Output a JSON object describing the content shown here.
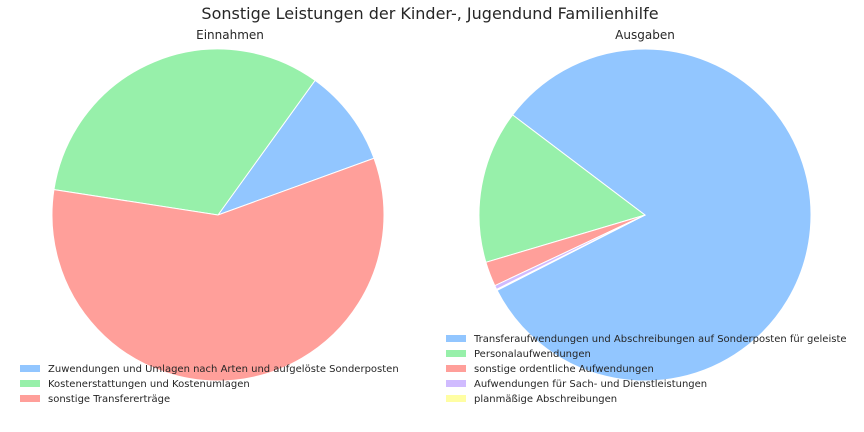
{
  "chart_data": {
    "title": "Sonstige Leistungen der Kinder-, Jugendund Familienhilfe",
    "charts": [
      {
        "type": "pie",
        "title": "Einnahmen",
        "legend_position": "bottom-left",
        "slices": [
          {
            "label": "Zuwendungen und Umlagen nach Arten und aufgelöste Sonderposten",
            "value": 9.5,
            "color": "#92c6ff"
          },
          {
            "label": "Kostenerstattungen und Kostenumlagen",
            "value": 32.5,
            "color": "#97f0aa"
          },
          {
            "label": "sonstige Transfererträge",
            "value": 58.0,
            "color": "#ff9f9a"
          }
        ]
      },
      {
        "type": "pie",
        "title": "Ausgaben",
        "legend_position": "bottom-right",
        "slices": [
          {
            "label": "Transferaufwendungen und Abschreibungen auf Sonderposten für geleiste",
            "value": 82.2,
            "color": "#92c6ff"
          },
          {
            "label": "Personalaufwendungen",
            "value": 14.9,
            "color": "#97f0aa"
          },
          {
            "label": "sonstige ordentliche Aufwendungen",
            "value": 2.4,
            "color": "#ff9f9a"
          },
          {
            "label": "Aufwendungen für Sach- und Dienstleistungen",
            "value": 0.4,
            "color": "#d0bbff"
          },
          {
            "label": "planmäßige Abschreibungen",
            "value": 0.1,
            "color": "#fffea3"
          }
        ]
      }
    ]
  }
}
